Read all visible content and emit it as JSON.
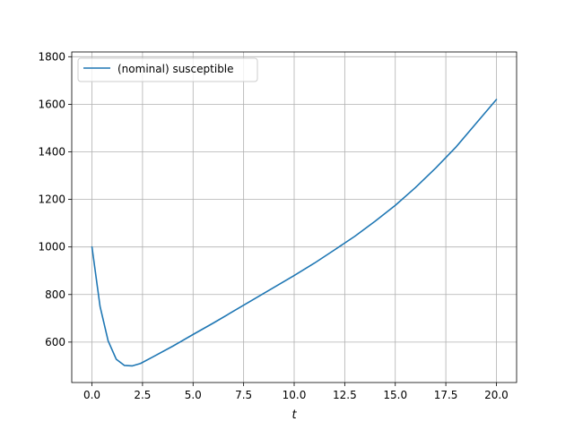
{
  "chart_data": {
    "type": "line",
    "title": "",
    "xlabel": "t",
    "ylabel": "",
    "xlim": [
      -1.0,
      21.0
    ],
    "ylim": [
      430,
      1820
    ],
    "xticks": [
      0.0,
      2.5,
      5.0,
      7.5,
      10.0,
      12.5,
      15.0,
      17.5,
      20.0
    ],
    "xtick_labels": [
      "0.0",
      "2.5",
      "5.0",
      "7.5",
      "10.0",
      "12.5",
      "15.0",
      "17.5",
      "20.0"
    ],
    "yticks": [
      600,
      800,
      1000,
      1200,
      1400,
      1600,
      1800
    ],
    "ytick_labels": [
      "600",
      "800",
      "1000",
      "1200",
      "1400",
      "1600",
      "1800"
    ],
    "grid": true,
    "legend_position": "upper left",
    "series": [
      {
        "name": "(nominal) susceptible",
        "color": "#1f77b4",
        "x": [
          0.0,
          0.4,
          0.8,
          1.2,
          1.6,
          2.0,
          2.4,
          3.0,
          4.0,
          5.0,
          6.0,
          7.0,
          8.0,
          9.0,
          10.0,
          11.0,
          12.0,
          13.0,
          14.0,
          15.0,
          16.0,
          17.0,
          18.0,
          19.0,
          19.5,
          20.0
        ],
        "y": [
          1000,
          750,
          605,
          528,
          502,
          500,
          510,
          537,
          583,
          632,
          680,
          730,
          780,
          830,
          880,
          932,
          988,
          1045,
          1108,
          1175,
          1250,
          1332,
          1420,
          1520,
          1570,
          1620
        ]
      }
    ]
  }
}
